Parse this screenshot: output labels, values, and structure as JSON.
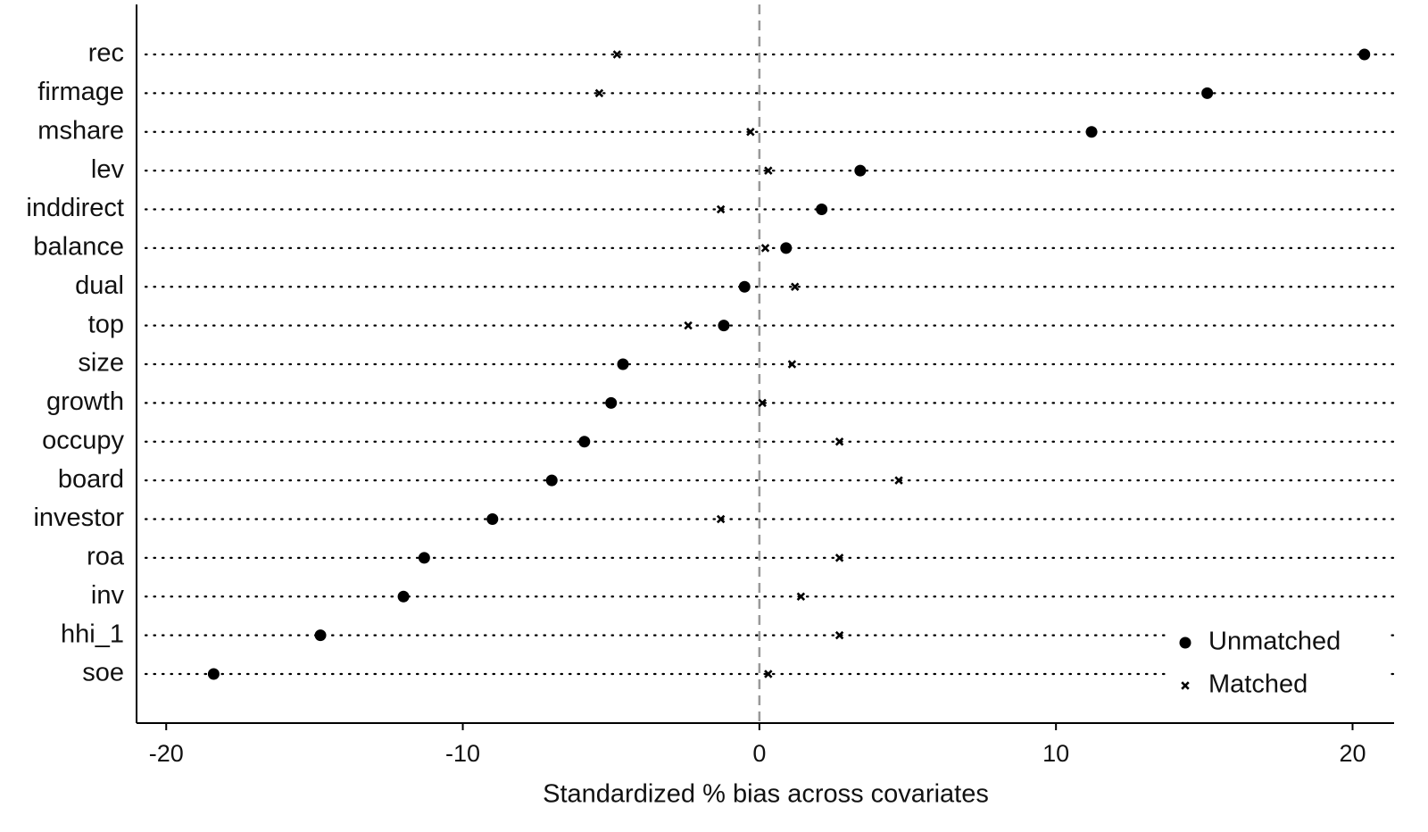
{
  "chart_data": {
    "type": "dot",
    "xlabel": "Standardized % bias across covariates",
    "categories": [
      "rec",
      "firmage",
      "mshare",
      "lev",
      "inddirect",
      "balance",
      "dual",
      "top",
      "size",
      "growth",
      "occupy",
      "board",
      "investor",
      "roa",
      "inv",
      "hhi_1",
      "soe"
    ],
    "series": [
      {
        "name": "Unmatched",
        "color": "#000000",
        "marker": "circle",
        "values": [
          20.4,
          15.1,
          11.2,
          3.4,
          2.1,
          0.9,
          -0.5,
          -1.2,
          -4.6,
          -5.0,
          -5.9,
          -7.0,
          -9.0,
          -11.3,
          -12.0,
          -14.8,
          -18.4
        ]
      },
      {
        "name": "Matched",
        "color": "#000000",
        "marker": "x",
        "values": [
          -4.8,
          -5.4,
          -0.3,
          0.3,
          -1.3,
          0.2,
          1.2,
          -2.4,
          1.1,
          0.1,
          2.7,
          4.7,
          -1.3,
          2.7,
          1.4,
          2.7,
          0.3
        ]
      }
    ],
    "xlim": [
      -21,
      21.4
    ],
    "xticks": [
      -20,
      -10,
      0,
      10,
      20
    ],
    "refline": 0,
    "legend": "lower right"
  }
}
